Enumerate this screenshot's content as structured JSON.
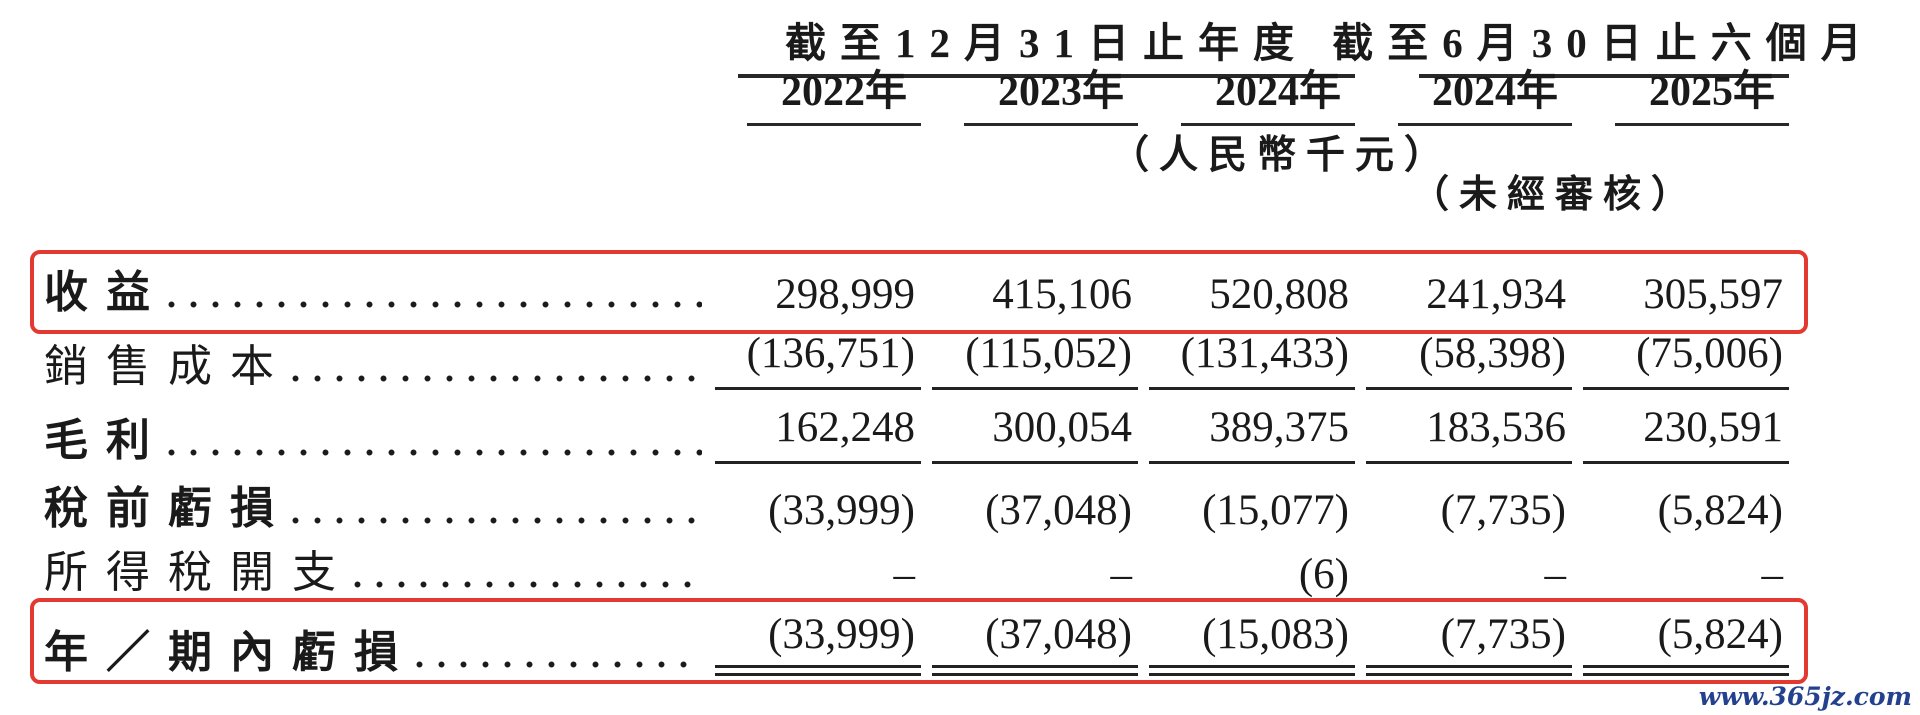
{
  "page": {
    "watermark": "www.365jz.com",
    "accent_red": "#e23a30",
    "watermark_blue": "#23418f",
    "text_color": "#1a1a1a"
  },
  "table": {
    "unit_note": "（人民幣千元）",
    "unaudited_note": "（未經審核）",
    "column_groups": [
      {
        "label": "截至12月31日止年度",
        "columns": [
          "2022年",
          "2023年",
          "2024年"
        ]
      },
      {
        "label": "截至6月30日止六個月",
        "columns": [
          "2024年",
          "2025年"
        ]
      }
    ],
    "rows": [
      {
        "label": "收益",
        "bold": true,
        "highlighted": true,
        "underline": "none",
        "values": [
          "298,999",
          "415,106",
          "520,808",
          "241,934",
          "305,597"
        ]
      },
      {
        "label": "銷售成本",
        "bold": false,
        "highlighted": false,
        "underline": "single",
        "values": [
          "(136,751)",
          "(115,052)",
          "(131,433)",
          "(58,398)",
          "(75,006)"
        ]
      },
      {
        "label": "毛利",
        "bold": true,
        "highlighted": false,
        "underline": "single",
        "values": [
          "162,248",
          "300,054",
          "389,375",
          "183,536",
          "230,591"
        ]
      },
      {
        "label": "稅前虧損",
        "bold": true,
        "highlighted": false,
        "underline": "none",
        "values": [
          "(33,999)",
          "(37,048)",
          "(15,077)",
          "(7,735)",
          "(5,824)"
        ]
      },
      {
        "label": "所得稅開支",
        "bold": false,
        "highlighted": false,
        "underline": "none",
        "values": [
          "–",
          "–",
          "(6)",
          "–",
          "–"
        ]
      },
      {
        "label": "年／期內虧損",
        "bold": true,
        "highlighted": true,
        "underline": "double",
        "values": [
          "(33,999)",
          "(37,048)",
          "(15,083)",
          "(7,735)",
          "(5,824)"
        ]
      }
    ]
  }
}
